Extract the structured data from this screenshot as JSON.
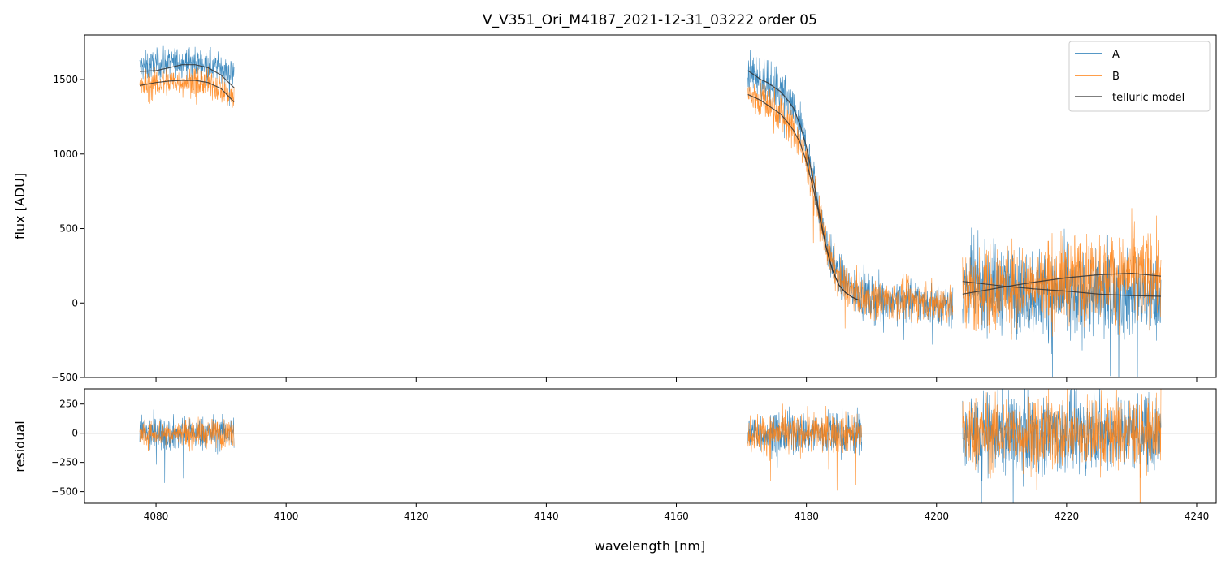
{
  "chart_data": {
    "type": "line",
    "title": "V_V351_Ori_M4187_2021-12-31_03222  order 05",
    "xlabel": "wavelength [nm]",
    "xlim": [
      4069,
      4243
    ],
    "xticks": [
      4080,
      4100,
      4120,
      4140,
      4160,
      4180,
      4200,
      4220,
      4240
    ],
    "colors": {
      "A": "#1f77b4",
      "B": "#ff7f0e",
      "telluric": "#333333",
      "zero_line": "#808080"
    },
    "panels": [
      {
        "name": "flux",
        "ylabel": "flux [ADU]",
        "ylim": [
          -500,
          1800
        ],
        "yticks": [
          -500,
          0,
          500,
          1000,
          1500
        ],
        "series": [
          {
            "name": "A",
            "segments": [
              {
                "x": [
                  4077.5,
                  4080,
                  4082,
                  4084,
                  4086,
                  4088,
                  4090,
                  4092
                ],
                "y": [
                  1580,
                  1600,
                  1610,
                  1620,
                  1615,
                  1600,
                  1580,
                  1530
                ],
                "noise": 90
              },
              {
                "x": [
                  4171,
                  4172,
                  4173,
                  4174,
                  4175,
                  4176,
                  4177,
                  4178,
                  4179,
                  4180,
                  4181,
                  4182,
                  4183,
                  4184,
                  4185,
                  4186,
                  4187,
                  4188,
                  4190,
                  4195,
                  4200,
                  4202.5
                ],
                "y": [
                  1560,
                  1530,
                  1500,
                  1480,
                  1450,
                  1420,
                  1360,
                  1300,
                  1200,
                  1050,
                  850,
                  620,
                  420,
                  260,
                  180,
                  130,
                  90,
                  60,
                  30,
                  15,
                  0,
                  0
                ],
                "noise": 130
              },
              {
                "x": [
                  4204,
                  4210,
                  4215,
                  4220,
                  4225,
                  4230,
                  4234.5
                ],
                "y": [
                  120,
                  100,
                  80,
                  60,
                  50,
                  45,
                  40
                ],
                "noise": 260
              }
            ]
          },
          {
            "name": "B",
            "segments": [
              {
                "x": [
                  4077.5,
                  4080,
                  4082,
                  4084,
                  4086,
                  4088,
                  4090,
                  4092
                ],
                "y": [
                  1450,
                  1470,
                  1480,
                  1490,
                  1490,
                  1470,
                  1440,
                  1380
                ],
                "noise": 90
              },
              {
                "x": [
                  4171,
                  4172,
                  4173,
                  4174,
                  4175,
                  4176,
                  4177,
                  4178,
                  4179,
                  4180,
                  4181,
                  4182,
                  4183,
                  4184,
                  4185,
                  4186,
                  4187,
                  4188,
                  4190,
                  4195,
                  4200,
                  4202.5
                ],
                "y": [
                  1400,
                  1380,
                  1360,
                  1330,
                  1300,
                  1270,
                  1220,
                  1160,
                  1080,
                  950,
                  780,
                  580,
                  400,
                  250,
                  170,
                  120,
                  80,
                  60,
                  30,
                  15,
                  0,
                  0
                ],
                "noise": 120
              },
              {
                "x": [
                  4204,
                  4210,
                  4215,
                  4220,
                  4225,
                  4230,
                  4234.5
                ],
                "y": [
                  60,
                  100,
                  130,
                  160,
                  190,
                  200,
                  180
                ],
                "noise": 260
              }
            ]
          },
          {
            "name": "telluric model",
            "segments": [
              {
                "x": [
                  4077.5,
                  4080,
                  4082,
                  4084,
                  4086,
                  4088,
                  4090,
                  4092
                ],
                "y": [
                  1555,
                  1560,
                  1580,
                  1600,
                  1600,
                  1580,
                  1530,
                  1445
                ]
              },
              {
                "x": [
                  4077.5,
                  4080,
                  4082,
                  4084,
                  4086,
                  4088,
                  4090,
                  4092
                ],
                "y": [
                  1460,
                  1480,
                  1490,
                  1495,
                  1495,
                  1480,
                  1440,
                  1350
                ]
              },
              {
                "x": [
                  4171,
                  4172,
                  4173,
                  4174,
                  4175,
                  4176,
                  4177,
                  4178,
                  4179,
                  4180,
                  4181,
                  4182,
                  4183,
                  4184,
                  4185,
                  4186,
                  4187,
                  4188
                ],
                "y": [
                  1560,
                  1530,
                  1500,
                  1480,
                  1450,
                  1420,
                  1370,
                  1310,
                  1200,
                  1050,
                  840,
                  600,
                  380,
                  220,
                  120,
                  70,
                  40,
                  20
                ]
              },
              {
                "x": [
                  4171,
                  4172,
                  4173,
                  4174,
                  4175,
                  4176,
                  4177,
                  4178,
                  4179,
                  4180,
                  4181,
                  4182,
                  4183,
                  4184,
                  4185,
                  4186,
                  4187,
                  4188
                ],
                "y": [
                  1400,
                  1380,
                  1360,
                  1330,
                  1300,
                  1270,
                  1220,
                  1160,
                  1080,
                  950,
                  780,
                  580,
                  380,
                  220,
                  120,
                  70,
                  40,
                  20
                ]
              },
              {
                "x": [
                  4204,
                  4210,
                  4215,
                  4220,
                  4225,
                  4230,
                  4234.5
                ],
                "y": [
                  145,
                  115,
                  95,
                  80,
                  60,
                  50,
                  45
                ]
              },
              {
                "x": [
                  4204,
                  4210,
                  4215,
                  4220,
                  4225,
                  4230,
                  4234.5
                ],
                "y": [
                  60,
                  105,
                  140,
                  170,
                  190,
                  200,
                  180
                ]
              }
            ]
          }
        ],
        "legend": {
          "position": "upper-right",
          "entries": [
            "A",
            "B",
            "telluric model"
          ]
        }
      },
      {
        "name": "residual",
        "ylabel": "residual",
        "ylim": [
          -600,
          380
        ],
        "yticks": [
          -500,
          -250,
          0,
          250
        ],
        "zero_line": 0,
        "series": [
          {
            "name": "A",
            "segments": [
              {
                "x": [
                  4077.5,
                  4092
                ],
                "y": [
                  0,
                  0
                ],
                "noise": 130
              },
              {
                "x": [
                  4171,
                  4188.5
                ],
                "y": [
                  0,
                  0
                ],
                "noise": 170
              },
              {
                "x": [
                  4204,
                  4234.5
                ],
                "y": [
                  0,
                  0
                ],
                "noise": 300
              }
            ]
          },
          {
            "name": "B",
            "segments": [
              {
                "x": [
                  4077.5,
                  4092
                ],
                "y": [
                  0,
                  0
                ],
                "noise": 110
              },
              {
                "x": [
                  4171,
                  4188.5
                ],
                "y": [
                  0,
                  0
                ],
                "noise": 150
              },
              {
                "x": [
                  4204,
                  4234.5
                ],
                "y": [
                  0,
                  0
                ],
                "noise": 280
              }
            ]
          }
        ]
      }
    ]
  }
}
